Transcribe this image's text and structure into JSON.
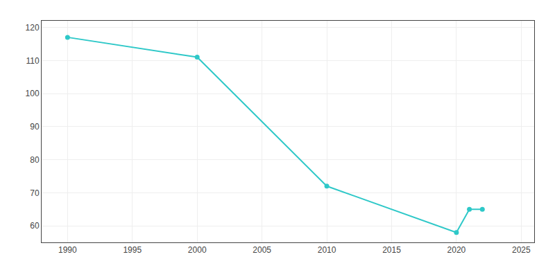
{
  "chart_data": {
    "type": "line",
    "x": [
      1990,
      2000,
      2010,
      2020,
      2021,
      2022
    ],
    "values": [
      117,
      111,
      72,
      58,
      65,
      65
    ],
    "color": "#2EC8C8",
    "marker": "circle",
    "xlim": [
      1988,
      2026
    ],
    "ylim": [
      55,
      122
    ],
    "xticks": [
      1990,
      1995,
      2000,
      2005,
      2010,
      2015,
      2020,
      2025
    ],
    "yticks": [
      60,
      70,
      80,
      90,
      100,
      110,
      120
    ],
    "grid": true
  }
}
